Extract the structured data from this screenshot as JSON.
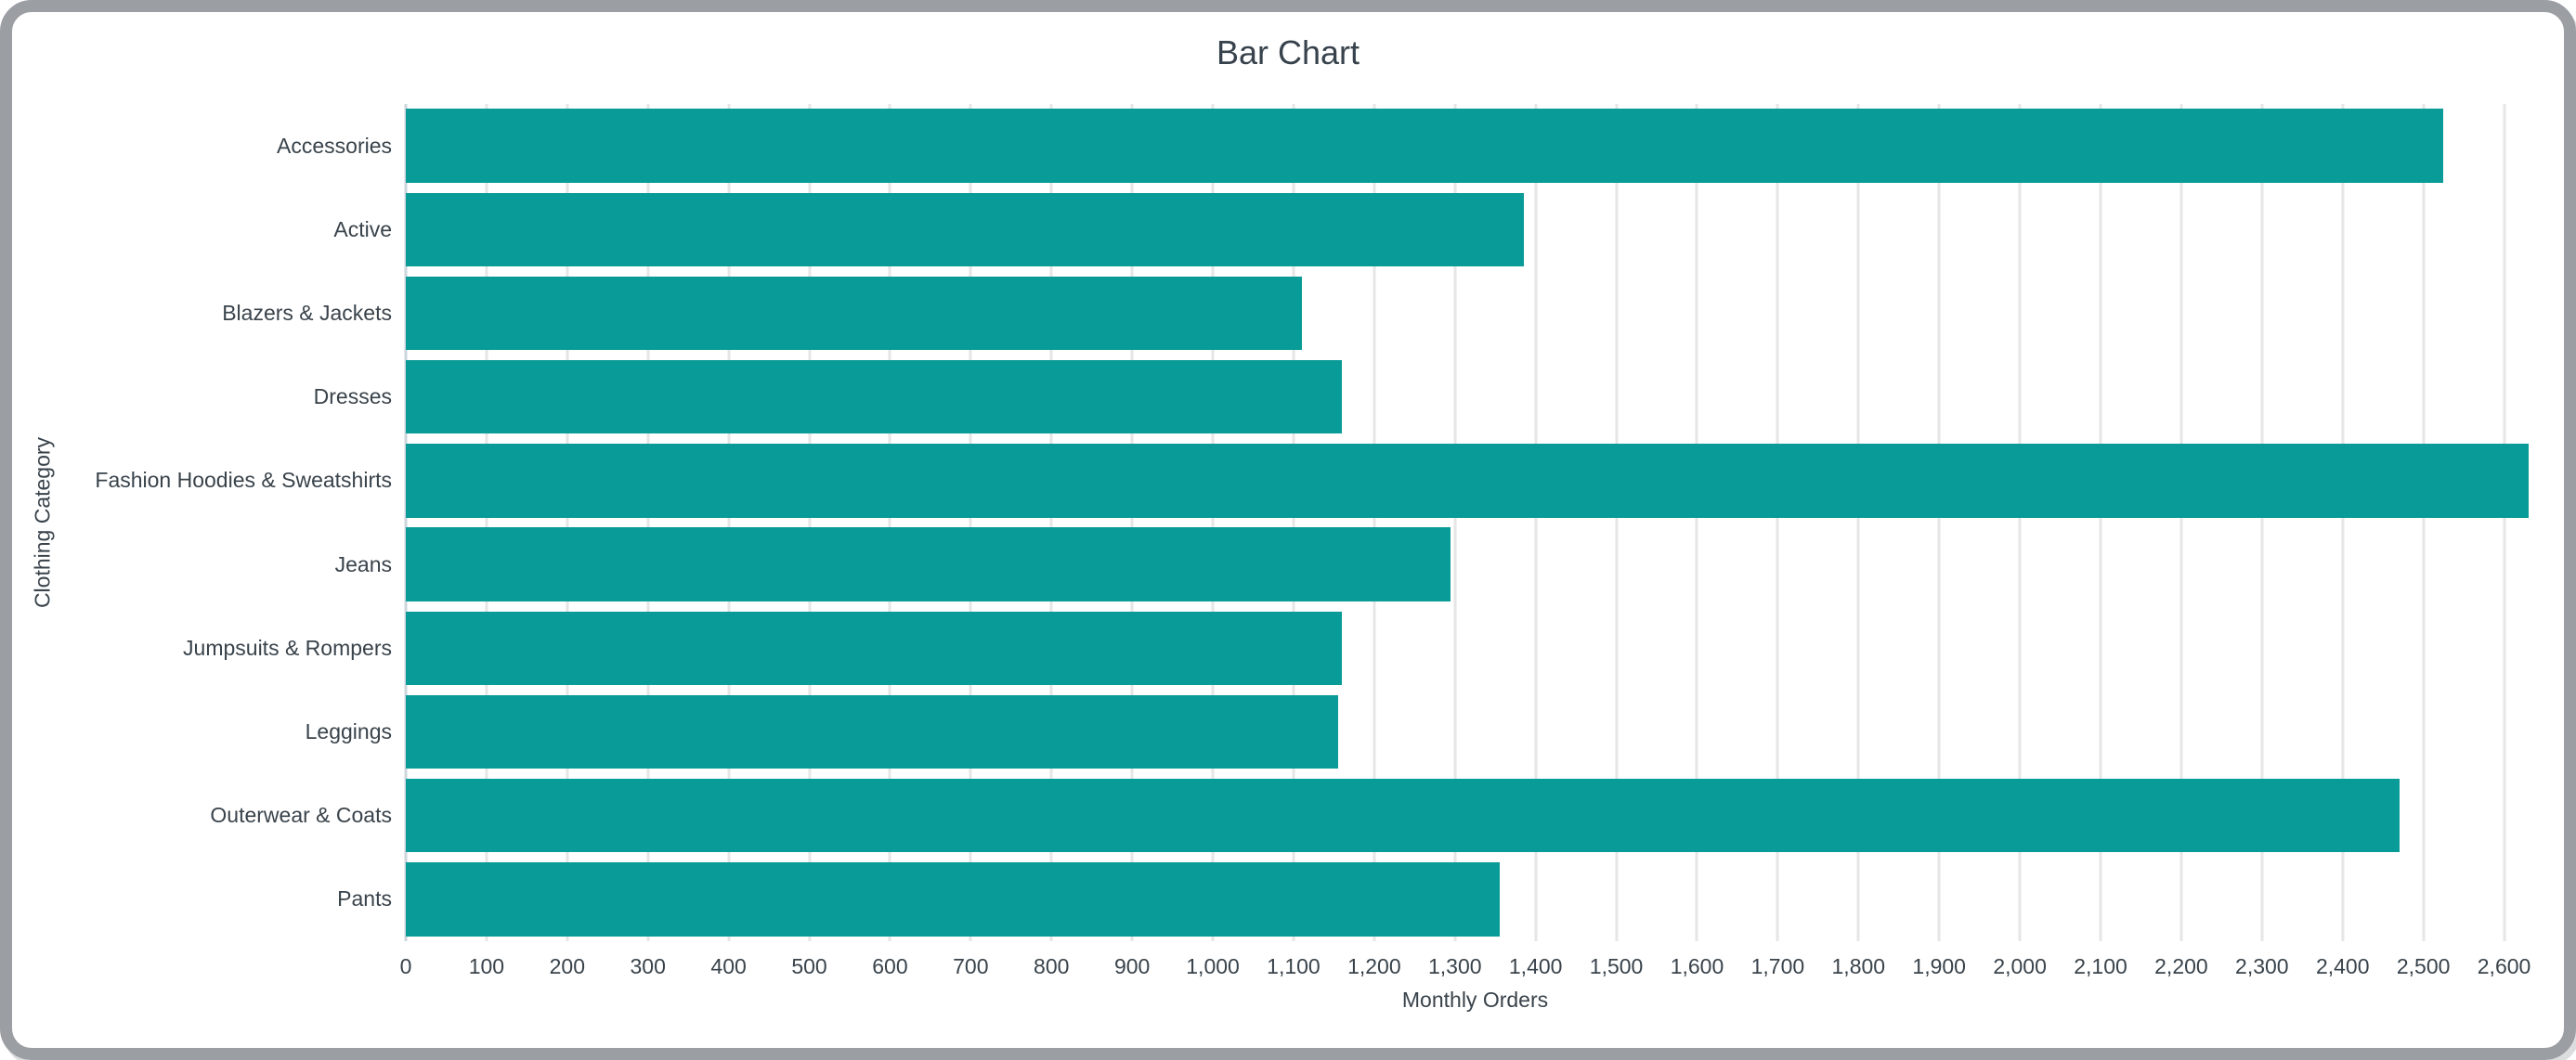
{
  "window": {
    "frame_color": "#9b9ea2",
    "background_color": "#ffffff"
  },
  "chart_data": {
    "type": "bar",
    "orientation": "horizontal",
    "title": "Bar Chart",
    "xlabel": "Monthly Orders",
    "ylabel": "Clothing Category",
    "categories": [
      "Accessories",
      "Active",
      "Blazers & Jackets",
      "Dresses",
      "Fashion Hoodies & Sweatshirts",
      "Jeans",
      "Jumpsuits & Rompers",
      "Leggings",
      "Outerwear & Coats",
      "Pants"
    ],
    "values": [
      2525,
      1385,
      1110,
      1160,
      2630,
      1295,
      1160,
      1155,
      2470,
      1355
    ],
    "xlim": [
      0,
      2650
    ],
    "xtick_min": 0,
    "xtick_max": 2600,
    "xtick_interval": 100,
    "xtick_format": "thousands-comma",
    "grid": "vertical",
    "legend": "none",
    "bar_color": "#099b97",
    "text_color": "#39434b",
    "gridline_color": "#e6e6e6",
    "zeroline_color": "#ccd6dd"
  }
}
